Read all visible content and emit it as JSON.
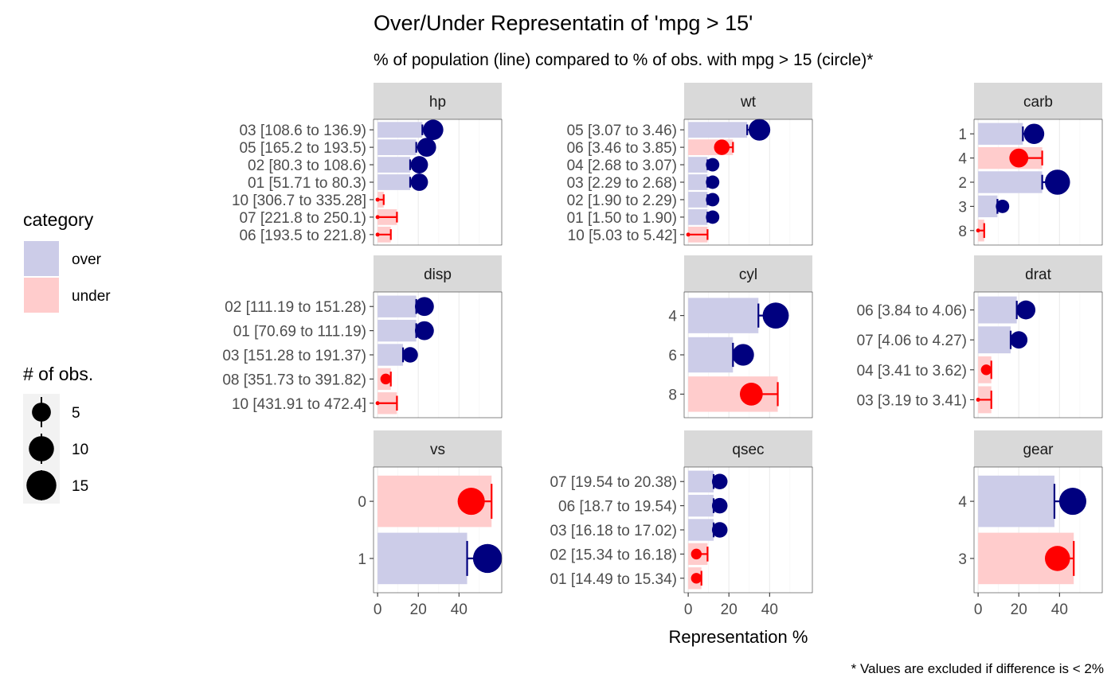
{
  "chart_data": {
    "type": "bar",
    "title": "Over/Under Representatin of 'mpg > 15'",
    "subtitle": "% of population (line) compared to % of obs. with mpg > 15 (circle)*",
    "xlabel": "Representation %",
    "caption": "* Values are excluded if difference is < 2%",
    "x_ticks": [
      "0",
      "20",
      "40"
    ],
    "colors": {
      "over_fill": "#cccce8",
      "under_fill": "#ffcccc",
      "over_point": "#00007f",
      "under_point": "#ff0000",
      "strip_bg": "#d9d9d9",
      "legend_key_bg": "#f2f2f2"
    },
    "legend_category": {
      "title": "category",
      "items": [
        {
          "label": "over",
          "color": "#cccce8"
        },
        {
          "label": "under",
          "color": "#ffcccc"
        }
      ]
    },
    "legend_size": {
      "title": "# of obs.",
      "items": [
        {
          "label": "5",
          "value": 5
        },
        {
          "label": "10",
          "value": 10
        },
        {
          "label": "15",
          "value": 15
        }
      ]
    },
    "panels": [
      {
        "name": "hp",
        "xlim": [
          -2,
          61
        ],
        "rows": [
          {
            "label": "03 [108.6 to 136.9)",
            "category": "over",
            "pop": 22,
            "obs": 27.3,
            "n": 6
          },
          {
            "label": "05 [165.2 to 193.5)",
            "category": "over",
            "pop": 19,
            "obs": 24.1,
            "n": 5
          },
          {
            "label": "02 [80.3 to 108.6)",
            "category": "over",
            "pop": 16,
            "obs": 20.5,
            "n": 4
          },
          {
            "label": "01 [51.71 to 80.3)",
            "category": "over",
            "pop": 16,
            "obs": 20.5,
            "n": 4
          },
          {
            "label": "10 [306.7 to 335.28]",
            "category": "under",
            "pop": 3,
            "obs": 0,
            "n": 0
          },
          {
            "label": "07 [221.8 to 250.1)",
            "category": "under",
            "pop": 9.5,
            "obs": 0,
            "n": 0
          },
          {
            "label": "06 [193.5 to 221.8)",
            "category": "under",
            "pop": 6.5,
            "obs": 0,
            "n": 0
          }
        ]
      },
      {
        "name": "wt",
        "xlim": [
          -2,
          61
        ],
        "rows": [
          {
            "label": "05 [3.07 to 3.46)",
            "category": "over",
            "pop": 29,
            "obs": 35,
            "n": 7
          },
          {
            "label": "06 [3.46 to 3.85)",
            "category": "under",
            "pop": 22,
            "obs": 16.5,
            "n": 3
          },
          {
            "label": "04 [2.68 to 3.07)",
            "category": "over",
            "pop": 9.5,
            "obs": 12,
            "n": 2
          },
          {
            "label": "03 [2.29 to 2.68)",
            "category": "over",
            "pop": 9.5,
            "obs": 12,
            "n": 2
          },
          {
            "label": "02 [1.90 to 2.29)",
            "category": "over",
            "pop": 9.5,
            "obs": 12,
            "n": 2
          },
          {
            "label": "01 [1.50 to 1.90)",
            "category": "over",
            "pop": 9.5,
            "obs": 12,
            "n": 2
          },
          {
            "label": "10 [5.03 to 5.42]",
            "category": "under",
            "pop": 9.5,
            "obs": 0,
            "n": 0
          }
        ]
      },
      {
        "name": "carb",
        "xlim": [
          -2,
          61
        ],
        "rows": [
          {
            "label": "1",
            "category": "over",
            "pop": 22,
            "obs": 27.5,
            "n": 6
          },
          {
            "label": "4",
            "category": "under",
            "pop": 31.5,
            "obs": 20,
            "n": 5
          },
          {
            "label": "2",
            "category": "over",
            "pop": 31.5,
            "obs": 39,
            "n": 10
          },
          {
            "label": "3",
            "category": "over",
            "pop": 9.5,
            "obs": 12,
            "n": 2
          },
          {
            "label": "8",
            "category": "under",
            "pop": 3,
            "obs": 0,
            "n": 0
          }
        ]
      },
      {
        "name": "disp",
        "xlim": [
          -2,
          61
        ],
        "rows": [
          {
            "label": "02 [111.19 to 151.28)",
            "category": "over",
            "pop": 19,
            "obs": 23,
            "n": 5
          },
          {
            "label": "01 [70.69 to 111.19)",
            "category": "over",
            "pop": 19,
            "obs": 23,
            "n": 5
          },
          {
            "label": "03 [151.28 to 191.37)",
            "category": "over",
            "pop": 12.5,
            "obs": 16,
            "n": 3
          },
          {
            "label": "08 [351.73 to 391.82)",
            "category": "under",
            "pop": 6.5,
            "obs": 4,
            "n": 1
          },
          {
            "label": "10 [431.91 to 472.4]",
            "category": "under",
            "pop": 9.5,
            "obs": 0,
            "n": 0
          }
        ]
      },
      {
        "name": "cyl",
        "xlim": [
          -2,
          61
        ],
        "rows": [
          {
            "label": "4",
            "category": "over",
            "pop": 34.5,
            "obs": 43,
            "n": 11
          },
          {
            "label": "6",
            "category": "over",
            "pop": 22,
            "obs": 27,
            "n": 7
          },
          {
            "label": "8",
            "category": "under",
            "pop": 44,
            "obs": 31,
            "n": 8
          }
        ]
      },
      {
        "name": "drat",
        "xlim": [
          -2,
          61
        ],
        "rows": [
          {
            "label": "06 [3.84 to 4.06)",
            "category": "over",
            "pop": 19,
            "obs": 23.5,
            "n": 5
          },
          {
            "label": "07 [4.06 to 4.27)",
            "category": "over",
            "pop": 16,
            "obs": 20,
            "n": 4
          },
          {
            "label": "04 [3.41 to 3.62)",
            "category": "under",
            "pop": 6.5,
            "obs": 4,
            "n": 1
          },
          {
            "label": "03 [3.19 to 3.41)",
            "category": "under",
            "pop": 6.5,
            "obs": 0,
            "n": 0
          }
        ]
      },
      {
        "name": "vs",
        "xlim": [
          -2,
          61
        ],
        "rows": [
          {
            "label": "0",
            "category": "under",
            "pop": 56,
            "obs": 46,
            "n": 12
          },
          {
            "label": "1",
            "category": "over",
            "pop": 44,
            "obs": 54,
            "n": 14
          }
        ]
      },
      {
        "name": "qsec",
        "xlim": [
          -2,
          61
        ],
        "rows": [
          {
            "label": "07 [19.54 to 20.38)",
            "category": "over",
            "pop": 12.5,
            "obs": 15.5,
            "n": 3
          },
          {
            "label": "06 [18.7 to 19.54)",
            "category": "over",
            "pop": 12.5,
            "obs": 15.5,
            "n": 3
          },
          {
            "label": "03 [16.18 to 17.02)",
            "category": "over",
            "pop": 12.5,
            "obs": 15.5,
            "n": 3
          },
          {
            "label": "02 [15.34 to 16.18)",
            "category": "under",
            "pop": 9.5,
            "obs": 4,
            "n": 1
          },
          {
            "label": "01 [14.49 to 15.34)",
            "category": "under",
            "pop": 6.5,
            "obs": 4,
            "n": 1
          }
        ]
      },
      {
        "name": "gear",
        "xlim": [
          -2,
          61
        ],
        "rows": [
          {
            "label": "4",
            "category": "over",
            "pop": 37.5,
            "obs": 46.5,
            "n": 12
          },
          {
            "label": "3",
            "category": "under",
            "pop": 47,
            "obs": 39,
            "n": 10
          }
        ]
      }
    ]
  }
}
